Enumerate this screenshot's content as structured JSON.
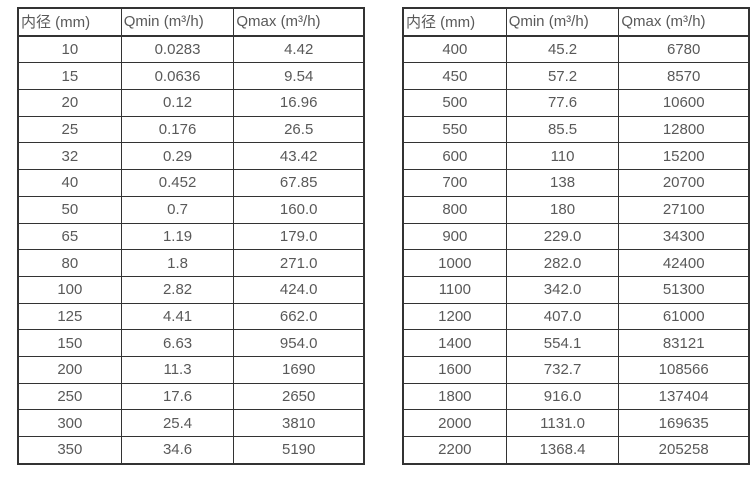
{
  "style": {
    "background_color": "#ffffff",
    "text_color": "#595959",
    "border_color": "#333333"
  },
  "tables": [
    {
      "name": "small-diameter-flow-ranges",
      "headers": [
        "内径 (mm)",
        "Qmin (m³/h)",
        "Qmax (m³/h)"
      ],
      "rows": [
        [
          "10",
          "0.0283",
          "4.42"
        ],
        [
          "15",
          "0.0636",
          "9.54"
        ],
        [
          "20",
          "0.12",
          "16.96"
        ],
        [
          "25",
          "0.176",
          "26.5"
        ],
        [
          "32",
          "0.29",
          "43.42"
        ],
        [
          "40",
          "0.452",
          "67.85"
        ],
        [
          "50",
          "0.7",
          "160.0"
        ],
        [
          "65",
          "1.19",
          "179.0"
        ],
        [
          "80",
          "1.8",
          "271.0"
        ],
        [
          "100",
          "2.82",
          "424.0"
        ],
        [
          "125",
          "4.41",
          "662.0"
        ],
        [
          "150",
          "6.63",
          "954.0"
        ],
        [
          "200",
          "11.3",
          "1690"
        ],
        [
          "250",
          "17.6",
          "2650"
        ],
        [
          "300",
          "25.4",
          "3810"
        ],
        [
          "350",
          "34.6",
          "5190"
        ]
      ]
    },
    {
      "name": "large-diameter-flow-ranges",
      "headers": [
        "内径 (mm)",
        "Qmin (m³/h)",
        "Qmax (m³/h)"
      ],
      "rows": [
        [
          "400",
          "45.2",
          "6780"
        ],
        [
          "450",
          "57.2",
          "8570"
        ],
        [
          "500",
          "77.6",
          "10600"
        ],
        [
          "550",
          "85.5",
          "12800"
        ],
        [
          "600",
          "110",
          "15200"
        ],
        [
          "700",
          "138",
          "20700"
        ],
        [
          "800",
          "180",
          "27100"
        ],
        [
          "900",
          "229.0",
          "34300"
        ],
        [
          "1000",
          "282.0",
          "42400"
        ],
        [
          "1100",
          "342.0",
          "51300"
        ],
        [
          "1200",
          "407.0",
          "61000"
        ],
        [
          "1400",
          "554.1",
          "83121"
        ],
        [
          "1600",
          "732.7",
          "108566"
        ],
        [
          "1800",
          "916.0",
          "137404"
        ],
        [
          "2000",
          "1131.0",
          "169635"
        ],
        [
          "2200",
          "1368.4",
          "205258"
        ]
      ]
    }
  ]
}
